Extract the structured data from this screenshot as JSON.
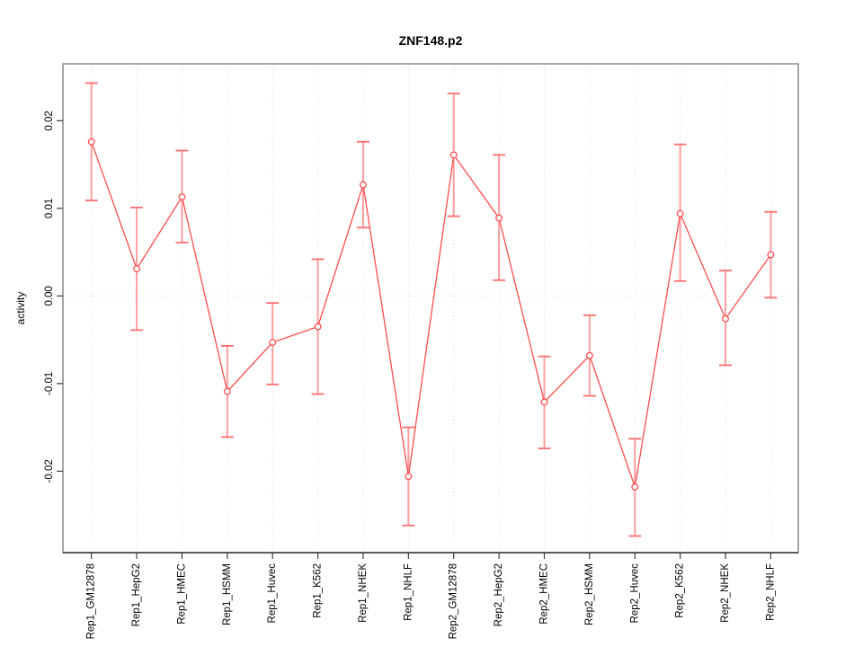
{
  "chart_data": {
    "type": "line",
    "title": "ZNF148.p2",
    "xlabel": "",
    "ylabel": "activity",
    "legend": null,
    "grid": {
      "vertical": "dotted line at every category",
      "horizontal": "dotted line at y=0 only"
    },
    "categories": [
      "Rep1_GM12878",
      "Rep1_HepG2",
      "Rep1_HMEC",
      "Rep1_HSMM",
      "Rep1_Huvec",
      "Rep1_K562",
      "Rep1_NHEK",
      "Rep1_NHLF",
      "Rep2_GM12878",
      "Rep2_HepG2",
      "Rep2_HMEC",
      "Rep2_HSMM",
      "Rep2_Huvec",
      "Rep2_K562",
      "Rep2_NHEK",
      "Rep2_NHLF"
    ],
    "series": [
      {
        "name": "activity",
        "values": [
          0.0176,
          0.0031,
          0.0113,
          -0.0109,
          -0.0053,
          -0.0035,
          0.0127,
          -0.0206,
          0.0161,
          0.0089,
          -0.0121,
          -0.0068,
          -0.0218,
          0.0094,
          -0.0026,
          0.0047
        ],
        "ci_low": [
          0.0109,
          -0.0039,
          0.0061,
          -0.0161,
          -0.0101,
          -0.0112,
          0.0078,
          -0.0262,
          0.0091,
          0.0018,
          -0.0174,
          -0.0114,
          -0.0274,
          0.0017,
          -0.0079,
          -0.0002
        ],
        "ci_high": [
          0.0243,
          0.0101,
          0.0166,
          -0.0057,
          -0.0008,
          0.0042,
          0.0176,
          -0.015,
          0.0231,
          0.0161,
          -0.0069,
          -0.0022,
          -0.0163,
          0.0173,
          0.0029,
          0.0096
        ]
      }
    ],
    "ylim": [
      -0.0293,
      0.0265
    ],
    "yticks": [
      -0.02,
      -0.01,
      0.0,
      0.01,
      0.02
    ],
    "ytick_labels": [
      "-0.02",
      "-0.01",
      "0.00",
      "0.01",
      "0.02"
    ],
    "colors": {
      "line": "#ff4d4d",
      "marker": "#ff4d4d",
      "marker_fill": "#ffffff",
      "error_shaft": "#ff9e9e",
      "error_cap": "#ff6e6e",
      "gridline": "#dcdcdc",
      "box": "#909090",
      "axis": "#3d3d3d",
      "text": "#000000"
    }
  }
}
